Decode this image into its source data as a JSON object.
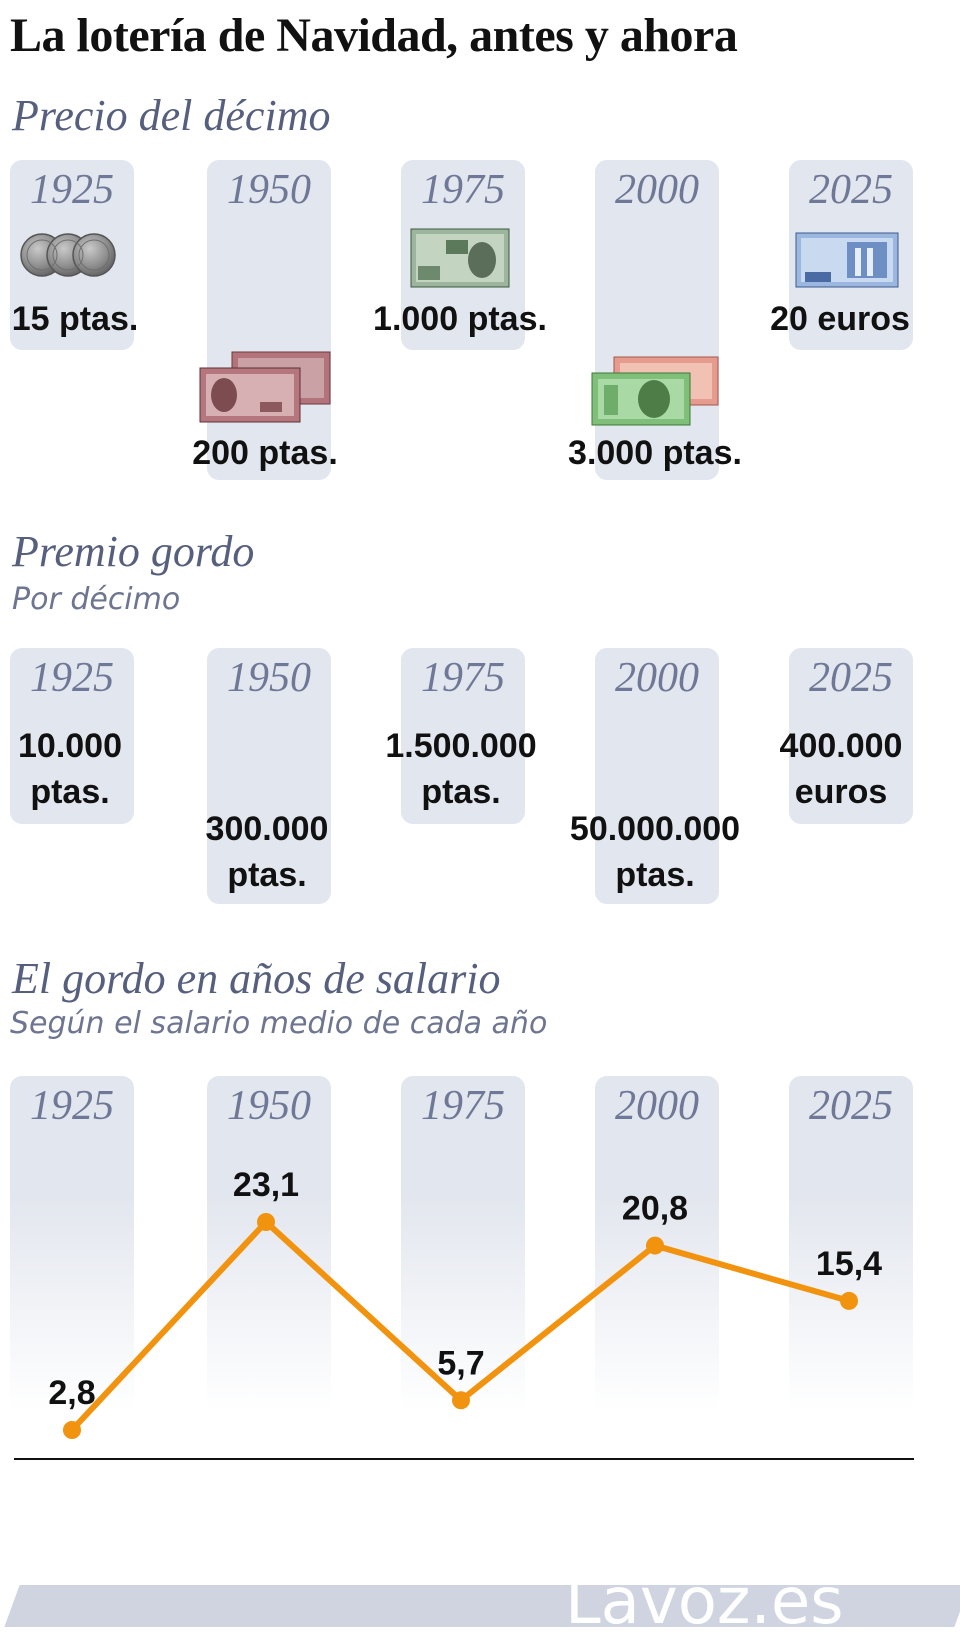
{
  "title": "La lotería de Navidad, antes y ahora",
  "price_section": {
    "title": "Precio del décimo",
    "years": [
      "1925",
      "1950",
      "1975",
      "2000",
      "2025"
    ],
    "values": [
      "15 ptas.",
      "200 ptas.",
      "1.000 ptas.",
      "3.000 ptas.",
      "20 euros"
    ]
  },
  "prize_section": {
    "title": "Premio gordo",
    "subtitle": "Por décimo",
    "years": [
      "1925",
      "1950",
      "1975",
      "2000",
      "2025"
    ],
    "values": [
      {
        "amount": "10.000",
        "unit": "ptas."
      },
      {
        "amount": "300.000",
        "unit": "ptas."
      },
      {
        "amount": "1.500.000",
        "unit": "ptas."
      },
      {
        "amount": "50.000.000",
        "unit": "ptas."
      },
      {
        "amount": "400.000",
        "unit": "euros"
      }
    ]
  },
  "salary_section": {
    "title": "El gordo en años de salario",
    "subtitle": "Según el salario medio de cada año",
    "years": [
      "1925",
      "1950",
      "1975",
      "2000",
      "2025"
    ]
  },
  "chart_data": {
    "type": "line",
    "x": [
      "1925",
      "1950",
      "1975",
      "2000",
      "2025"
    ],
    "labels": [
      "2,8",
      "23,1",
      "5,7",
      "20,8",
      "15,4"
    ],
    "series": [
      {
        "values": [
          2.8,
          23.1,
          5.7,
          20.8,
          15.4
        ]
      }
    ],
    "color": "#f2930f",
    "grid": false
  },
  "footer": {
    "logo": "Lavoz.es"
  },
  "colors": {
    "accent": "#f2930f",
    "column": "#e2e6ee",
    "heading": "#56607e"
  }
}
